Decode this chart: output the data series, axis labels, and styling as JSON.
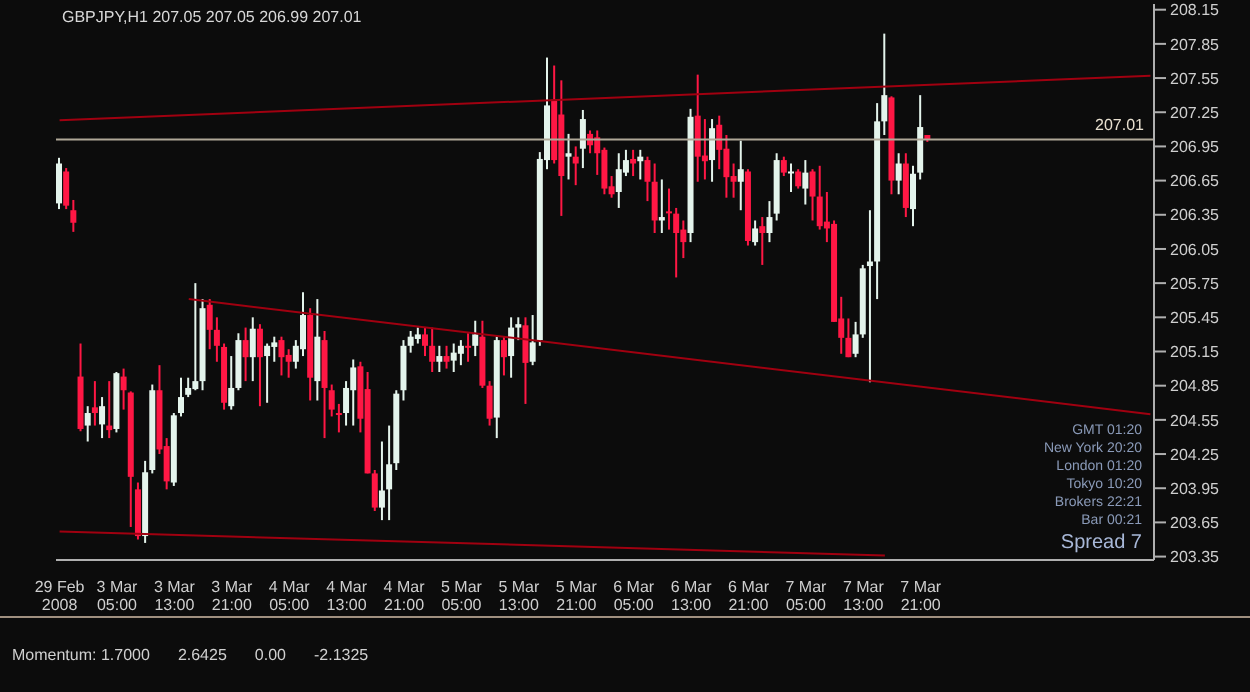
{
  "chart_data": {
    "type": "candlestick",
    "title": "GBPJPY,H1 207.05 207.05 206.99 207.01",
    "categories": [
      "29 Feb 2008",
      null,
      null,
      null,
      null,
      null,
      null,
      null,
      "3 Mar 05:00",
      null,
      null,
      null,
      null,
      null,
      null,
      null,
      "3 Mar 13:00",
      null,
      null,
      null,
      null,
      null,
      null,
      null,
      "3 Mar 21:00",
      null,
      null,
      null,
      null,
      null,
      null,
      null,
      "4 Mar 05:00",
      null,
      null,
      null,
      null,
      null,
      null,
      null,
      "4 Mar 13:00",
      null,
      null,
      null,
      null,
      null,
      null,
      null,
      "4 Mar 21:00",
      null,
      null,
      null,
      null,
      null,
      null,
      null,
      "5 Mar 05:00",
      null,
      null,
      null,
      null,
      null,
      null,
      null,
      "5 Mar 13:00",
      null,
      null,
      null,
      null,
      null,
      null,
      null,
      "5 Mar 21:00",
      null,
      null,
      null,
      null,
      null,
      null,
      null,
      "6 Mar 05:00",
      null,
      null,
      null,
      null,
      null,
      null,
      null,
      "6 Mar 13:00",
      null,
      null,
      null,
      null,
      null,
      null,
      null,
      "6 Mar 21:00",
      null,
      null,
      null,
      null,
      null,
      null,
      null,
      "7 Mar 05:00",
      null,
      null,
      null,
      null,
      null,
      null,
      null,
      "7 Mar 13:00",
      null,
      null,
      null,
      null,
      null,
      null,
      null,
      "7 Mar 21:00",
      null,
      null,
      null,
      null,
      null,
      null,
      null,
      null,
      null,
      null,
      null,
      null,
      null,
      null,
      null,
      null,
      null,
      null,
      null,
      null,
      null,
      null,
      null,
      null,
      null,
      null,
      null,
      null,
      null,
      null,
      null,
      null
    ],
    "ohlc": [
      [
        206.45,
        206.85,
        206.4,
        206.8
      ],
      [
        206.73,
        206.76,
        206.4,
        206.43
      ],
      [
        206.39,
        206.48,
        206.2,
        206.28
      ],
      [
        204.93,
        205.22,
        204.45,
        204.47
      ],
      [
        204.5,
        204.67,
        204.36,
        204.61
      ],
      [
        204.66,
        204.89,
        204.5,
        204.61
      ],
      [
        204.51,
        204.75,
        204.39,
        204.67
      ],
      [
        204.5,
        204.89,
        204.39,
        204.46
      ],
      [
        204.47,
        204.97,
        204.44,
        204.96
      ],
      [
        204.93,
        205,
        204.64,
        204.81
      ],
      [
        204.79,
        204.8,
        203.61,
        204.05
      ],
      [
        203.94,
        204,
        203.5,
        203.53
      ],
      [
        203.53,
        204.19,
        203.47,
        204.09
      ],
      [
        204.11,
        204.86,
        204.08,
        204.81
      ],
      [
        204.81,
        205.03,
        204.25,
        204.29
      ],
      [
        204.32,
        204.39,
        203.94,
        204.01
      ],
      [
        204,
        204.61,
        203.97,
        204.59
      ],
      [
        204.61,
        204.92,
        204.58,
        204.75
      ],
      [
        204.77,
        204.92,
        204.75,
        204.83
      ],
      [
        204.82,
        205.75,
        204.81,
        204.89
      ],
      [
        204.89,
        205.61,
        204.81,
        205.53
      ],
      [
        205.56,
        205.61,
        205.17,
        205.34
      ],
      [
        205.34,
        205.45,
        205.06,
        205.2
      ],
      [
        205.19,
        205.22,
        204.64,
        204.7
      ],
      [
        204.67,
        205.11,
        204.64,
        204.83
      ],
      [
        204.83,
        205.31,
        204.81,
        205.25
      ],
      [
        205.25,
        205.36,
        204.89,
        205.1
      ],
      [
        205.1,
        205.45,
        204.89,
        205.35
      ],
      [
        205.35,
        205.39,
        204.67,
        205.1
      ],
      [
        205.11,
        205.22,
        204.7,
        205.2
      ],
      [
        205.19,
        205.28,
        205.06,
        205.23
      ],
      [
        205.25,
        205.28,
        204.94,
        205.1
      ],
      [
        205.12,
        205.17,
        204.92,
        205.06
      ],
      [
        205.06,
        205.25,
        205,
        205.2
      ],
      [
        205.17,
        205.67,
        205.11,
        205.47
      ],
      [
        205.47,
        205.53,
        204.72,
        204.92
      ],
      [
        204.89,
        205.61,
        204.72,
        205.28
      ],
      [
        205.25,
        205.33,
        204.39,
        204.83
      ],
      [
        204.81,
        204.86,
        204.58,
        204.64
      ],
      [
        204.61,
        204.69,
        204.44,
        204.6
      ],
      [
        204.61,
        204.89,
        204.5,
        204.83
      ],
      [
        204.81,
        205.08,
        204.5,
        205.01
      ],
      [
        205.02,
        205.06,
        204.44,
        204.56
      ],
      [
        204.82,
        204.97,
        204.08,
        204.08
      ],
      [
        204.08,
        204.11,
        203.75,
        203.78
      ],
      [
        203.78,
        204.36,
        203.67,
        203.93
      ],
      [
        203.94,
        204.5,
        203.67,
        204.16
      ],
      [
        204.17,
        204.81,
        204.11,
        204.78
      ],
      [
        204.81,
        205.25,
        204.72,
        205.2
      ],
      [
        205.2,
        205.33,
        205.14,
        205.28
      ],
      [
        205.26,
        205.36,
        205.22,
        205.3
      ],
      [
        205.3,
        205.36,
        205.11,
        205.2
      ],
      [
        205.2,
        205.36,
        204.97,
        205.06
      ],
      [
        205.06,
        205.2,
        204.97,
        205.11
      ],
      [
        205.11,
        205.2,
        205,
        205.06
      ],
      [
        205.07,
        205.22,
        204.97,
        205.14
      ],
      [
        205.13,
        205.25,
        205.03,
        205.2
      ],
      [
        205.2,
        205.31,
        205.06,
        205.19
      ],
      [
        205.2,
        205.42,
        205.11,
        205.3
      ],
      [
        205.28,
        205.42,
        204.83,
        204.85
      ],
      [
        204.85,
        204.89,
        204.5,
        204.56
      ],
      [
        204.57,
        205.28,
        204.39,
        205.25
      ],
      [
        205.25,
        205.28,
        204.94,
        205.1
      ],
      [
        205.11,
        205.45,
        204.92,
        205.36
      ],
      [
        205.36,
        205.45,
        205.25,
        205.39
      ],
      [
        205.38,
        205.45,
        204.69,
        205.05
      ],
      [
        205.06,
        205.47,
        205.03,
        205.23
      ],
      [
        205.25,
        206.9,
        205.2,
        206.84
      ],
      [
        206.83,
        207.73,
        206.75,
        207.31
      ],
      [
        207.36,
        207.66,
        206.8,
        206.83
      ],
      [
        207.23,
        207.53,
        206.34,
        206.69
      ],
      [
        206.86,
        207.06,
        206.66,
        206.89
      ],
      [
        206.86,
        206.95,
        206.61,
        206.8
      ],
      [
        206.93,
        207.27,
        206.76,
        207.19
      ],
      [
        207.06,
        207.09,
        206.89,
        206.96
      ],
      [
        207.03,
        207.09,
        206.7,
        206.89
      ],
      [
        206.92,
        206.94,
        206.53,
        206.58
      ],
      [
        206.6,
        206.69,
        206.5,
        206.53
      ],
      [
        206.55,
        206.89,
        206.41,
        206.75
      ],
      [
        206.72,
        206.92,
        206.69,
        206.83
      ],
      [
        206.84,
        206.92,
        206.69,
        206.8
      ],
      [
        206.82,
        206.92,
        206.66,
        206.86
      ],
      [
        206.83,
        206.86,
        206.47,
        206.64
      ],
      [
        206.64,
        206.8,
        206.19,
        206.3
      ],
      [
        206.3,
        206.66,
        206.19,
        206.33
      ],
      [
        206.38,
        206.58,
        206.22,
        206.37
      ],
      [
        206.36,
        206.41,
        205.8,
        206.19
      ],
      [
        206.22,
        206.3,
        205.97,
        206.11
      ],
      [
        206.19,
        207.28,
        206.11,
        207.21
      ],
      [
        207.22,
        207.58,
        206.64,
        206.86
      ],
      [
        206.87,
        207.19,
        206.66,
        206.82
      ],
      [
        206.83,
        207.19,
        206.64,
        207.11
      ],
      [
        207.14,
        207.22,
        206.75,
        206.92
      ],
      [
        206.93,
        207.05,
        206.5,
        206.68
      ],
      [
        206.69,
        206.8,
        206.5,
        206.64
      ],
      [
        206.64,
        207,
        206.39,
        206.75
      ],
      [
        206.73,
        206.75,
        206.08,
        206.12
      ],
      [
        206.11,
        206.3,
        206.08,
        206.23
      ],
      [
        206.25,
        206.33,
        205.91,
        206.19
      ],
      [
        206.19,
        206.47,
        206.11,
        206.33
      ],
      [
        206.36,
        206.89,
        206.3,
        206.83
      ],
      [
        206.83,
        206.86,
        206.69,
        206.72
      ],
      [
        206.72,
        206.8,
        206.55,
        206.73
      ],
      [
        206.73,
        206.75,
        206.58,
        206.6
      ],
      [
        206.58,
        206.83,
        206.44,
        206.72
      ],
      [
        206.73,
        206.75,
        206.3,
        206.51
      ],
      [
        206.51,
        206.78,
        206.22,
        206.25
      ],
      [
        206.29,
        206.55,
        206.11,
        206.23
      ],
      [
        206.27,
        206.3,
        205.41,
        205.41
      ],
      [
        205.44,
        205.63,
        205.13,
        205.27
      ],
      [
        205.27,
        205.44,
        205.1,
        205.1
      ],
      [
        205.13,
        205.41,
        205.1,
        205.3
      ],
      [
        205.3,
        205.91,
        205.27,
        205.88
      ],
      [
        205.9,
        206.39,
        204.88,
        205.94
      ],
      [
        205.94,
        207.33,
        205.61,
        207.17
      ],
      [
        207.17,
        207.94,
        207.05,
        207.4
      ],
      [
        207.38,
        207.39,
        206.53,
        206.65
      ],
      [
        206.65,
        206.89,
        206.53,
        206.8
      ],
      [
        206.8,
        206.89,
        206.33,
        206.41
      ],
      [
        206.4,
        206.78,
        206.25,
        206.71
      ],
      [
        206.72,
        207.4,
        206.66,
        207.12
      ],
      [
        207.05,
        207.05,
        206.99,
        207.01
      ],
      null,
      null,
      null,
      null,
      null,
      null,
      null,
      null,
      null,
      null,
      null,
      null,
      null,
      null,
      null,
      null,
      null,
      null,
      null,
      null,
      null,
      null,
      null,
      null,
      null,
      null,
      null,
      null,
      null,
      null,
      null
    ],
    "colors": [
      "#e4f4ec",
      "#ff1744",
      "#ff1744",
      "#ff1744",
      "#e4f4ec",
      "#ff1744",
      "#e4f4ec",
      "#ff1744",
      "#e4f4ec",
      "#ff1744",
      "#ff1744",
      "#ff1744",
      "#e4f4ec",
      "#e4f4ec",
      "#ff1744",
      "#ff1744",
      "#e4f4ec",
      "#e4f4ec",
      "#e4f4ec",
      "#e4f4ec",
      "#e4f4ec",
      "#ff1744",
      "#ff1744",
      "#ff1744",
      "#e4f4ec",
      "#e4f4ec",
      "#ff1744",
      "#e4f4ec",
      "#ff1744",
      "#e4f4ec",
      "#e4f4ec",
      "#ff1744",
      "#ff1744",
      "#e4f4ec",
      "#e4f4ec",
      "#ff1744",
      "#e4f4ec",
      "#ff1744",
      "#ff1744",
      "#ff1744",
      "#e4f4ec",
      "#e4f4ec",
      "#ff1744",
      "#ff1744",
      "#ff1744",
      "#e4f4ec",
      "#e4f4ec",
      "#e4f4ec",
      "#e4f4ec",
      "#e4f4ec",
      "#e4f4ec",
      "#ff1744",
      "#ff1744",
      "#e4f4ec",
      "#ff1744",
      "#e4f4ec",
      "#e4f4ec",
      "#ff1744",
      "#e4f4ec",
      "#ff1744",
      "#ff1744",
      "#e4f4ec",
      "#ff1744",
      "#e4f4ec",
      "#e4f4ec",
      "#ff1744",
      "#e4f4ec",
      "#e4f4ec",
      "#e4f4ec",
      "#ff1744",
      "#ff1744",
      "#e4f4ec",
      "#ff1744",
      "#e4f4ec",
      "#ff1744",
      "#ff1744",
      "#ff1744",
      "#ff1744",
      "#e4f4ec",
      "#e4f4ec",
      "#ff1744",
      "#e4f4ec",
      "#ff1744",
      "#ff1744",
      "#e4f4ec",
      "#ff1744",
      "#ff1744",
      "#ff1744",
      "#e4f4ec",
      "#ff1744",
      "#ff1744",
      "#e4f4ec",
      "#ff1744",
      "#ff1744",
      "#ff1744",
      "#e4f4ec",
      "#ff1744",
      "#e4f4ec",
      "#ff1744",
      "#e4f4ec",
      "#e4f4ec",
      "#ff1744",
      "#e4f4ec",
      "#ff1744",
      "#e4f4ec",
      "#ff1744",
      "#ff1744",
      "#ff1744",
      "#ff1744",
      "#ff1744",
      "#ff1744",
      "#e4f4ec",
      "#e4f4ec",
      "#e4f4ec",
      "#e4f4ec",
      "#e4f4ec",
      "#ff1744",
      "#e4f4ec",
      "#ff1744",
      "#e4f4ec",
      "#e4f4ec",
      "#ff1744",
      null,
      null,
      null,
      null,
      null,
      null,
      null,
      null,
      null,
      null,
      null,
      null,
      null,
      null,
      null,
      null,
      null,
      null,
      null,
      null,
      null,
      null,
      null,
      null,
      null,
      null,
      null,
      null,
      null,
      null,
      null
    ],
    "series": [
      {
        "type": "line",
        "color": "#a00010",
        "values": [
          207.18,
          null,
          null,
          null,
          null,
          null,
          null,
          null,
          null,
          null,
          null,
          null,
          null,
          null,
          null,
          null,
          null,
          null,
          null,
          null,
          null,
          null,
          null,
          null,
          null,
          null,
          null,
          null,
          null,
          null,
          null,
          null,
          null,
          null,
          null,
          null,
          null,
          null,
          null,
          null,
          null,
          null,
          null,
          null,
          null,
          null,
          null,
          null,
          null,
          null,
          null,
          null,
          null,
          null,
          null,
          null,
          null,
          null,
          null,
          null,
          null,
          null,
          null,
          null,
          null,
          null,
          null,
          null,
          null,
          null,
          null,
          null,
          null,
          null,
          null,
          null,
          null,
          null,
          null,
          null,
          null,
          null,
          null,
          null,
          null,
          null,
          null,
          null,
          null,
          null,
          null,
          null,
          null,
          null,
          null,
          null,
          null,
          null,
          null,
          null,
          null,
          null,
          null,
          null,
          null,
          null,
          null,
          null,
          null,
          null,
          null,
          null,
          null,
          null,
          null,
          null,
          null,
          null,
          null,
          null,
          null,
          null,
          null,
          null,
          null,
          null,
          null,
          null,
          null,
          null,
          null,
          null,
          null,
          null,
          null,
          null,
          null,
          null,
          null,
          null,
          null,
          null,
          null,
          null,
          null,
          null,
          null,
          null,
          null,
          null,
          null,
          null,
          207.57
        ]
      },
      {
        "type": "line",
        "color": "#a00010",
        "values": [
          null,
          null,
          null,
          null,
          null,
          null,
          null,
          null,
          null,
          null,
          null,
          null,
          null,
          null,
          null,
          null,
          null,
          null,
          205.61,
          null,
          null,
          null,
          null,
          null,
          null,
          null,
          null,
          null,
          null,
          null,
          null,
          null,
          null,
          null,
          null,
          null,
          null,
          null,
          null,
          null,
          null,
          null,
          null,
          null,
          null,
          null,
          null,
          null,
          null,
          null,
          null,
          null,
          null,
          null,
          null,
          null,
          null,
          null,
          null,
          null,
          null,
          null,
          null,
          null,
          null,
          null,
          null,
          null,
          null,
          null,
          null,
          null,
          null,
          null,
          null,
          null,
          null,
          null,
          null,
          null,
          null,
          null,
          null,
          null,
          null,
          null,
          null,
          null,
          null,
          null,
          null,
          null,
          null,
          null,
          null,
          null,
          null,
          null,
          null,
          null,
          null,
          null,
          null,
          null,
          null,
          null,
          null,
          null,
          null,
          null,
          null,
          null,
          null,
          null,
          null,
          null,
          null,
          null,
          null,
          null,
          null,
          null,
          null,
          null,
          null,
          null,
          null,
          null,
          null,
          null,
          null,
          null,
          null,
          null,
          null,
          null,
          null,
          null,
          null,
          null,
          null,
          null,
          null,
          null,
          null,
          null,
          null,
          null,
          null,
          null,
          null,
          null,
          204.6
        ]
      },
      {
        "type": "line",
        "color": "#a00010",
        "values": [
          203.57,
          null,
          null,
          null,
          null,
          null,
          null,
          null,
          null,
          null,
          null,
          null,
          null,
          null,
          null,
          null,
          null,
          null,
          null,
          null,
          null,
          null,
          null,
          null,
          null,
          null,
          null,
          null,
          null,
          null,
          null,
          null,
          null,
          null,
          null,
          null,
          null,
          null,
          null,
          null,
          null,
          null,
          null,
          null,
          null,
          null,
          null,
          null,
          null,
          null,
          null,
          null,
          null,
          null,
          null,
          null,
          null,
          null,
          null,
          null,
          null,
          null,
          null,
          null,
          null,
          null,
          null,
          null,
          null,
          null,
          null,
          null,
          null,
          null,
          null,
          null,
          null,
          null,
          null,
          null,
          null,
          null,
          null,
          null,
          null,
          null,
          null,
          null,
          null,
          null,
          null,
          null,
          null,
          null,
          null,
          null,
          null,
          null,
          null,
          null,
          null,
          null,
          null,
          null,
          null,
          null,
          null,
          null,
          null,
          null,
          null,
          null,
          null,
          null,
          null,
          203.36,
          null,
          null,
          null,
          null,
          null,
          null,
          null,
          null,
          null,
          null,
          null,
          null,
          null,
          null,
          null,
          null,
          null,
          null,
          null,
          null,
          null,
          null,
          null,
          null,
          null,
          null,
          null,
          null,
          null,
          null,
          null,
          null,
          null,
          null,
          null,
          null,
          null
        ]
      }
    ],
    "ylim": [
      203.32,
      208.2
    ],
    "yticks": [
      203.35,
      203.65,
      203.95,
      204.25,
      204.55,
      204.85,
      205.15,
      205.45,
      205.75,
      206.05,
      206.35,
      206.65,
      206.95,
      207.25,
      207.55,
      207.85,
      208.15
    ],
    "ref_lines": [
      {
        "axis": "y",
        "value": 207.01,
        "label": "207.01",
        "color": "#b0a898",
        "line_style": "solid"
      }
    ],
    "annotations": [
      "GMT 01:20",
      "New York 20:20",
      "London 01:20",
      "Tokyo 10:20",
      "Brokers 22:21",
      "Bar 00:21",
      "Spread 7",
      "Momentum: 1.7000",
      "2.6425",
      "0.00",
      "-2.1325"
    ]
  }
}
